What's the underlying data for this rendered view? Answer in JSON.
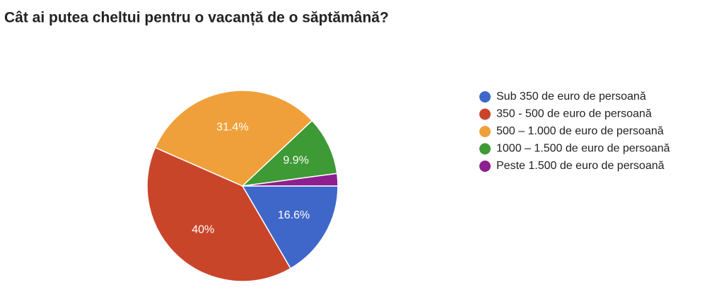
{
  "chart_data": {
    "type": "pie",
    "title": "Cât ai putea cheltui pentru o vacanță de o săptămână?",
    "categories": [
      "Sub 350 de euro de persoană",
      "350 - 500 de euro de persoană",
      "500 – 1.000 de euro de persoană",
      "1000 – 1.500 de euro de persoană",
      "Peste 1.500 de euro de persoană"
    ],
    "values": [
      16.6,
      40,
      31.4,
      9.9,
      2.1
    ],
    "value_labels": [
      "16.6%",
      "40%",
      "31.4%",
      "9.9%",
      null
    ],
    "colors": [
      "#3f67c9",
      "#c9452a",
      "#f0a03a",
      "#3d9a34",
      "#8e1f90"
    ],
    "legend": "right"
  }
}
